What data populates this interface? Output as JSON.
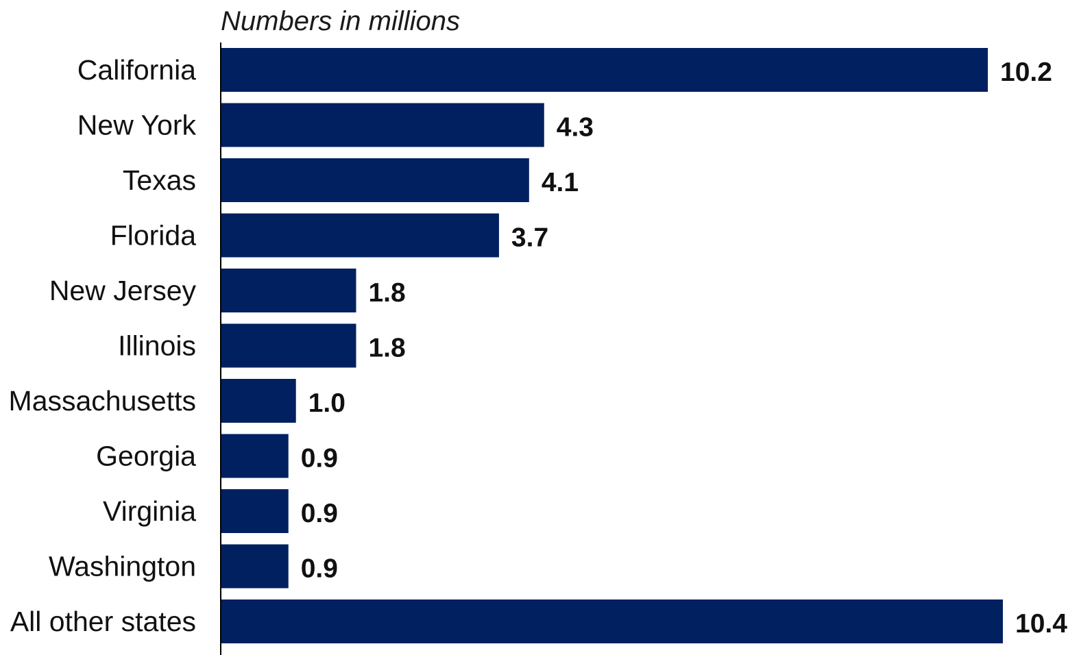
{
  "chart_data": {
    "type": "bar",
    "orientation": "horizontal",
    "subtitle": "Numbers in millions",
    "categories": [
      "California",
      "New York",
      "Texas",
      "Florida",
      "New Jersey",
      "Illinois",
      "Massachusetts",
      "Georgia",
      "Virginia",
      "Washington",
      "All other states"
    ],
    "values": [
      10.2,
      4.3,
      4.1,
      3.7,
      1.8,
      1.8,
      1.0,
      0.9,
      0.9,
      0.9,
      10.4
    ],
    "value_labels": [
      "10.2",
      "4.3",
      "4.1",
      "3.7",
      "1.8",
      "1.8",
      "1.0",
      "0.9",
      "0.9",
      "0.9",
      "10.4"
    ],
    "xlabel": "",
    "ylabel": "",
    "xlim": [
      0,
      10.4
    ],
    "grid": false,
    "legend": "none",
    "bar_color": "#002060",
    "axis_color": "#000000"
  }
}
